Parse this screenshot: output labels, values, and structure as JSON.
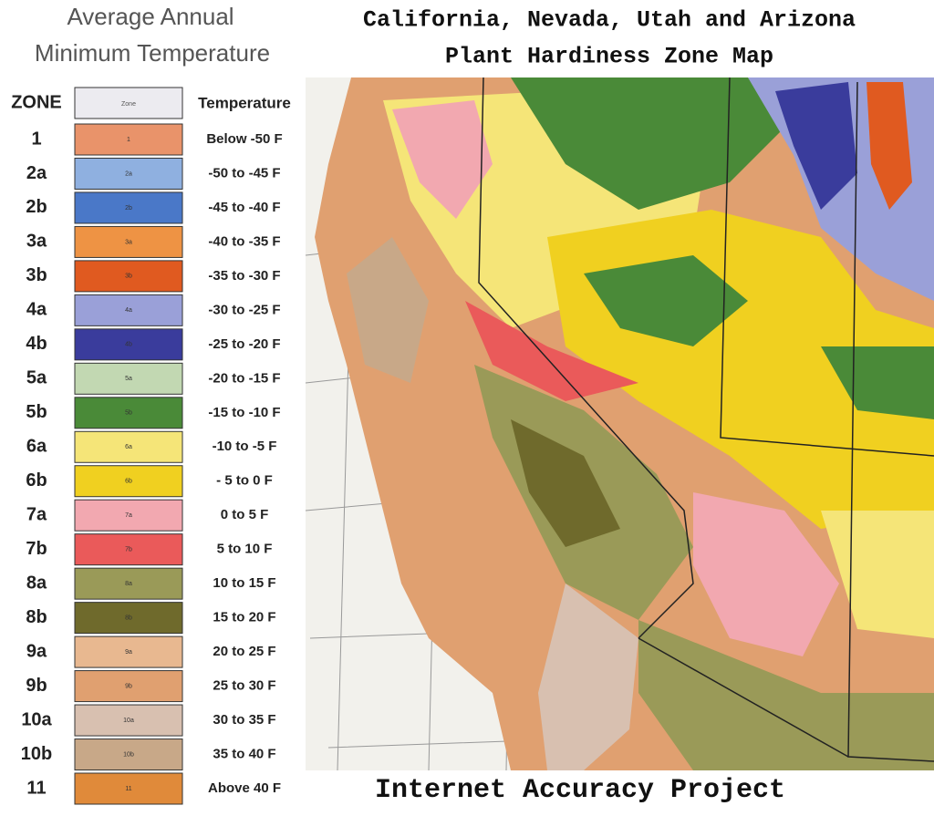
{
  "legend": {
    "title_lines": [
      "Average Annual",
      "Minimum Temperature"
    ],
    "header": {
      "zone": "ZONE",
      "swatch": "Zone",
      "temperature": "Temperature"
    },
    "rows": [
      {
        "zone": "1",
        "temperature": "Below -50 F",
        "color": "#e9936a"
      },
      {
        "zone": "2a",
        "temperature": "-50 to -45 F",
        "color": "#8fb0e0"
      },
      {
        "zone": "2b",
        "temperature": "-45 to -40 F",
        "color": "#4a78c8"
      },
      {
        "zone": "3a",
        "temperature": "-40 to -35 F",
        "color": "#ee9344"
      },
      {
        "zone": "3b",
        "temperature": "-35 to -30 F",
        "color": "#e05a20"
      },
      {
        "zone": "4a",
        "temperature": "-30 to -25 F",
        "color": "#9aa0d8"
      },
      {
        "zone": "4b",
        "temperature": "-25 to -20 F",
        "color": "#3a3c9c"
      },
      {
        "zone": "5a",
        "temperature": "-20 to -15 F",
        "color": "#c2d8b2"
      },
      {
        "zone": "5b",
        "temperature": "-15 to -10 F",
        "color": "#4a8a38"
      },
      {
        "zone": "6a",
        "temperature": "-10 to -5 F",
        "color": "#f5e578"
      },
      {
        "zone": "6b",
        "temperature": "- 5 to 0 F",
        "color": "#f0d020"
      },
      {
        "zone": "7a",
        "temperature": "0 to 5 F",
        "color": "#f2a8b0"
      },
      {
        "zone": "7b",
        "temperature": "5 to 10 F",
        "color": "#ea5a5a"
      },
      {
        "zone": "8a",
        "temperature": "10 to 15 F",
        "color": "#9a9a58"
      },
      {
        "zone": "8b",
        "temperature": "15 to 20 F",
        "color": "#6f6a2c"
      },
      {
        "zone": "9a",
        "temperature": "20 to 25 F",
        "color": "#e8b890"
      },
      {
        "zone": "9b",
        "temperature": "25 to 30 F",
        "color": "#e0a070"
      },
      {
        "zone": "10a",
        "temperature": "30 to 35 F",
        "color": "#d8c0b0"
      },
      {
        "zone": "10b",
        "temperature": "35 to 40 F",
        "color": "#c8a888"
      },
      {
        "zone": "11",
        "temperature": "Above 40 F",
        "color": "#e08a3a"
      }
    ]
  },
  "map": {
    "title_lines": [
      "California, Nevada, Utah and Arizona",
      "Plant Hardiness Zone Map"
    ],
    "footer": "Internet Accuracy Project"
  }
}
